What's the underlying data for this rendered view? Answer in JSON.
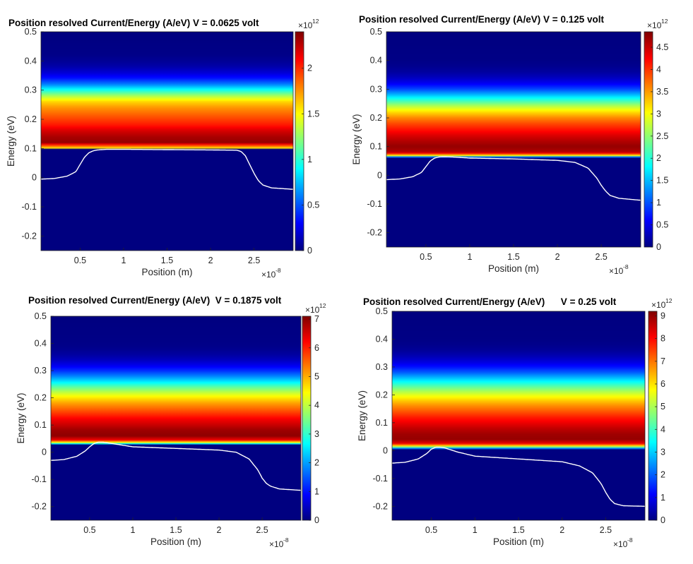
{
  "chart_data": [
    {
      "type": "heatmap",
      "title": "Position resolved Current/Energy (A/eV) V = 0.0625 volt",
      "xlabel": "Position (m)",
      "ylabel": "Energy (eV)",
      "xlim": [
        0.05,
        2.95
      ],
      "ylim": [
        -0.25,
        0.5
      ],
      "x_ticks": [
        0.5,
        1,
        1.5,
        2,
        2.5
      ],
      "x_tick_labels": [
        "0.5",
        "1",
        "1.5",
        "2",
        "2.5"
      ],
      "y_ticks": [
        -0.2,
        -0.1,
        0,
        0.1,
        0.2,
        0.3,
        0.4,
        0.5
      ],
      "y_tick_labels": [
        "-0.2",
        "-0.1",
        "0",
        "0.1",
        "0.2",
        "0.3",
        "0.4",
        "0.5"
      ],
      "x_multiplier": "×10",
      "x_exponent": "-8",
      "colorbar": {
        "colormap": "jet",
        "clim": [
          0,
          2.4
        ],
        "ticks": [
          0,
          0.5,
          1,
          1.5,
          2
        ],
        "tick_labels": [
          "0",
          "0.5",
          "1",
          "1.5",
          "2"
        ],
        "multiplier": "×10",
        "exponent": "12"
      },
      "current_density_vs_energy": {
        "energy": [
          0.098,
          0.1,
          0.12,
          0.14,
          0.16,
          0.18,
          0.2,
          0.22,
          0.24,
          0.26,
          0.28,
          0.3,
          0.32,
          0.34,
          0.36,
          0.38,
          0.4,
          0.42,
          0.5
        ],
        "value": [
          0,
          1.5,
          2.35,
          2.3,
          2.2,
          2.05,
          1.95,
          1.85,
          1.75,
          1.6,
          1.3,
          0.95,
          0.6,
          0.35,
          0.2,
          0.1,
          0.05,
          0.02,
          0
        ]
      },
      "band_edge": {
        "position": [
          0.05,
          0.2,
          0.35,
          0.45,
          0.5,
          0.55,
          0.6,
          0.65,
          0.7,
          0.8,
          1.0,
          1.5,
          2.0,
          2.3,
          2.35,
          2.4,
          2.45,
          2.5,
          2.55,
          2.6,
          2.7,
          2.95
        ],
        "energy": [
          -0.005,
          -0.003,
          0.005,
          0.02,
          0.045,
          0.07,
          0.085,
          0.092,
          0.095,
          0.097,
          0.097,
          0.096,
          0.095,
          0.094,
          0.09,
          0.075,
          0.045,
          0.015,
          -0.01,
          -0.025,
          -0.035,
          -0.04
        ]
      }
    },
    {
      "type": "heatmap",
      "title": "Position resolved Current/Energy (A/eV) V = 0.125 volt",
      "xlabel": "Position (m)",
      "ylabel": "Energy (eV)",
      "xlim": [
        0.05,
        2.95
      ],
      "ylim": [
        -0.25,
        0.5
      ],
      "x_ticks": [
        0.5,
        1,
        1.5,
        2,
        2.5
      ],
      "x_tick_labels": [
        "0.5",
        "1",
        "1.5",
        "2",
        "2.5"
      ],
      "y_ticks": [
        -0.2,
        -0.1,
        0,
        0.1,
        0.2,
        0.3,
        0.4,
        0.5
      ],
      "y_tick_labels": [
        "-0.2",
        "-0.1",
        "0",
        "0.1",
        "0.2",
        "0.3",
        "0.4",
        "0.5"
      ],
      "x_multiplier": "×10",
      "x_exponent": "-8",
      "colorbar": {
        "colormap": "jet",
        "clim": [
          0,
          4.85
        ],
        "ticks": [
          0,
          0.5,
          1,
          1.5,
          2,
          2.5,
          3,
          3.5,
          4,
          4.5
        ],
        "tick_labels": [
          "0",
          "0.5",
          "1",
          "1.5",
          "2",
          "2.5",
          "3",
          "3.5",
          "4",
          "4.5"
        ],
        "multiplier": "×10",
        "exponent": "12"
      },
      "current_density_vs_energy": {
        "energy": [
          0.062,
          0.065,
          0.07,
          0.08,
          0.1,
          0.12,
          0.14,
          0.16,
          0.18,
          0.2,
          0.22,
          0.24,
          0.26,
          0.28,
          0.3,
          0.32,
          0.34,
          0.36,
          0.38,
          0.4,
          0.5
        ],
        "value": [
          0,
          1.8,
          3.4,
          4.6,
          4.75,
          4.6,
          4.4,
          4.15,
          3.9,
          3.6,
          3.2,
          2.7,
          2.1,
          1.5,
          0.95,
          0.55,
          0.3,
          0.15,
          0.07,
          0.03,
          0
        ]
      },
      "band_edge": {
        "position": [
          0.05,
          0.2,
          0.35,
          0.45,
          0.5,
          0.55,
          0.6,
          0.65,
          0.7,
          0.8,
          1.0,
          1.5,
          2.0,
          2.2,
          2.35,
          2.45,
          2.5,
          2.55,
          2.6,
          2.7,
          2.95
        ],
        "energy": [
          -0.015,
          -0.013,
          -0.005,
          0.01,
          0.03,
          0.05,
          0.06,
          0.064,
          0.065,
          0.064,
          0.06,
          0.057,
          0.052,
          0.045,
          0.025,
          -0.01,
          -0.035,
          -0.055,
          -0.07,
          -0.08,
          -0.087
        ]
      }
    },
    {
      "type": "heatmap",
      "title": "Position resolved Current/Energy (A/eV)  V = 0.1875 volt",
      "xlabel": "Position (m)",
      "ylabel": "Energy (eV)",
      "xlim": [
        0.05,
        2.95
      ],
      "ylim": [
        -0.25,
        0.5
      ],
      "x_ticks": [
        0.5,
        1,
        1.5,
        2,
        2.5
      ],
      "x_tick_labels": [
        "0.5",
        "1",
        "1.5",
        "2",
        "2.5"
      ],
      "y_ticks": [
        -0.2,
        -0.1,
        0,
        0.1,
        0.2,
        0.3,
        0.4,
        0.5
      ],
      "y_tick_labels": [
        "-0.2",
        "-0.1",
        "0",
        "0.1",
        "0.2",
        "0.3",
        "0.4",
        "0.5"
      ],
      "x_multiplier": "×10",
      "x_exponent": "-8",
      "colorbar": {
        "colormap": "jet",
        "clim": [
          0,
          7.1
        ],
        "ticks": [
          0,
          1,
          2,
          3,
          4,
          5,
          6,
          7
        ],
        "tick_labels": [
          "0",
          "1",
          "2",
          "3",
          "4",
          "5",
          "6",
          "7"
        ],
        "multiplier": "×10",
        "exponent": "12"
      },
      "current_density_vs_energy": {
        "energy": [
          0.028,
          0.03,
          0.035,
          0.045,
          0.06,
          0.08,
          0.1,
          0.12,
          0.14,
          0.16,
          0.18,
          0.2,
          0.22,
          0.24,
          0.26,
          0.28,
          0.3,
          0.32,
          0.34,
          0.36,
          0.38,
          0.4,
          0.5
        ],
        "value": [
          0,
          2.0,
          4.2,
          6.3,
          7.0,
          6.9,
          6.6,
          6.3,
          5.9,
          5.5,
          5.1,
          4.6,
          4.0,
          3.3,
          2.5,
          1.8,
          1.2,
          0.75,
          0.42,
          0.22,
          0.1,
          0.05,
          0
        ]
      },
      "band_edge": {
        "position": [
          0.05,
          0.2,
          0.35,
          0.45,
          0.5,
          0.55,
          0.6,
          0.65,
          0.7,
          0.8,
          1.0,
          1.5,
          2.0,
          2.2,
          2.35,
          2.45,
          2.5,
          2.55,
          2.6,
          2.7,
          2.95
        ],
        "energy": [
          -0.03,
          -0.027,
          -0.015,
          0.005,
          0.02,
          0.032,
          0.037,
          0.037,
          0.035,
          0.03,
          0.02,
          0.014,
          0.008,
          0.0,
          -0.025,
          -0.065,
          -0.095,
          -0.115,
          -0.125,
          -0.135,
          -0.14
        ]
      }
    },
    {
      "type": "heatmap",
      "title": "Position resolved Current/Energy (A/eV)      V = 0.25 volt",
      "xlabel": "Position (m)",
      "ylabel": "Energy (eV)",
      "xlim": [
        0.05,
        2.95
      ],
      "ylim": [
        -0.25,
        0.5
      ],
      "x_ticks": [
        0.5,
        1,
        1.5,
        2,
        2.5
      ],
      "x_tick_labels": [
        "0.5",
        "1",
        "1.5",
        "2",
        "2.5"
      ],
      "y_ticks": [
        -0.2,
        -0.1,
        0,
        0.1,
        0.2,
        0.3,
        0.4,
        0.5
      ],
      "y_tick_labels": [
        "-0.2",
        "-0.1",
        "0",
        "0.1",
        "0.2",
        "0.3",
        "0.4",
        "0.5"
      ],
      "x_multiplier": "×10",
      "x_exponent": "-8",
      "colorbar": {
        "colormap": "jet",
        "clim": [
          0,
          9.2
        ],
        "ticks": [
          0,
          1,
          2,
          3,
          4,
          5,
          6,
          7,
          8,
          9
        ],
        "tick_labels": [
          "0",
          "1",
          "2",
          "3",
          "4",
          "5",
          "6",
          "7",
          "8",
          "9"
        ],
        "multiplier": "×10",
        "exponent": "12"
      },
      "current_density_vs_energy": {
        "energy": [
          0.005,
          0.008,
          0.015,
          0.025,
          0.04,
          0.06,
          0.08,
          0.1,
          0.12,
          0.14,
          0.16,
          0.18,
          0.2,
          0.22,
          0.24,
          0.26,
          0.28,
          0.3,
          0.32,
          0.34,
          0.36,
          0.38,
          0.4,
          0.5
        ],
        "value": [
          0,
          2.5,
          5.5,
          8.2,
          9.0,
          8.9,
          8.6,
          8.2,
          7.8,
          7.3,
          6.8,
          6.2,
          5.5,
          4.7,
          3.8,
          2.9,
          2.0,
          1.3,
          0.8,
          0.45,
          0.22,
          0.1,
          0.05,
          0
        ]
      },
      "band_edge": {
        "position": [
          0.05,
          0.2,
          0.35,
          0.45,
          0.5,
          0.55,
          0.6,
          0.65,
          0.7,
          0.8,
          1.0,
          1.5,
          2.0,
          2.2,
          2.35,
          2.45,
          2.5,
          2.55,
          2.6,
          2.7,
          2.95
        ],
        "energy": [
          -0.045,
          -0.042,
          -0.03,
          -0.01,
          0.005,
          0.012,
          0.012,
          0.01,
          0.005,
          -0.005,
          -0.02,
          -0.03,
          -0.04,
          -0.055,
          -0.08,
          -0.12,
          -0.15,
          -0.175,
          -0.19,
          -0.198,
          -0.2
        ]
      }
    }
  ]
}
